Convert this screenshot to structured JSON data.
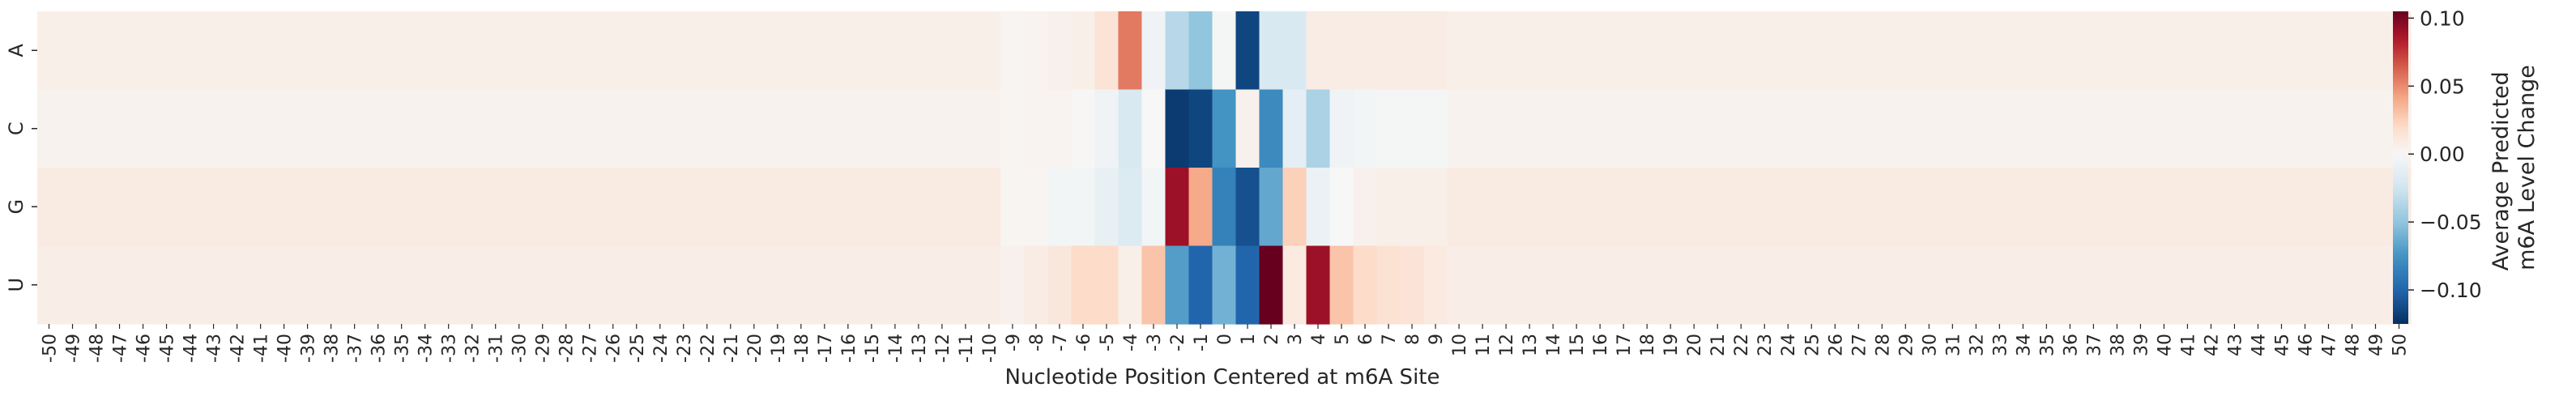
{
  "chart_data": {
    "type": "heatmap",
    "title": "",
    "xlabel": "Nucleotide Position Centered at m6A Site",
    "ylabel": "",
    "rows": [
      "A",
      "C",
      "G",
      "U"
    ],
    "x": [
      -50,
      -49,
      -48,
      -47,
      -46,
      -45,
      -44,
      -43,
      -42,
      -41,
      -40,
      -39,
      -38,
      -37,
      -36,
      -35,
      -34,
      -33,
      -32,
      -31,
      -30,
      -29,
      -28,
      -27,
      -26,
      -25,
      -24,
      -23,
      -22,
      -21,
      -20,
      -19,
      -18,
      -17,
      -16,
      -15,
      -14,
      -13,
      -12,
      -11,
      -10,
      -9,
      -8,
      -7,
      -6,
      -5,
      -4,
      -3,
      -2,
      -1,
      0,
      1,
      2,
      3,
      4,
      5,
      6,
      7,
      8,
      9,
      10,
      11,
      12,
      13,
      14,
      15,
      16,
      17,
      18,
      19,
      20,
      21,
      22,
      23,
      24,
      25,
      26,
      27,
      28,
      29,
      30,
      31,
      32,
      33,
      34,
      35,
      36,
      37,
      38,
      39,
      40,
      41,
      42,
      43,
      44,
      45,
      46,
      47,
      48,
      49,
      50
    ],
    "core": {
      "positions": [
        -9,
        -8,
        -7,
        -6,
        -5,
        -4,
        -3,
        -2,
        -1,
        0,
        1,
        2,
        3,
        4,
        5,
        6,
        7,
        8,
        9
      ],
      "A": [
        0.002,
        0.003,
        0.005,
        0.006,
        0.015,
        0.055,
        -0.005,
        -0.035,
        -0.05,
        -0.002,
        -0.115,
        -0.02,
        -0.02,
        0.008,
        0.008,
        0.008,
        0.008,
        0.008,
        0.008
      ],
      "C": [
        0.002,
        0.003,
        0.003,
        0.001,
        -0.005,
        -0.02,
        0.0,
        -0.12,
        -0.115,
        -0.075,
        0.005,
        -0.08,
        -0.012,
        -0.04,
        -0.005,
        -0.003,
        -0.002,
        -0.002,
        -0.002
      ],
      "G": [
        0.002,
        0.002,
        -0.003,
        -0.003,
        -0.01,
        -0.018,
        -0.003,
        0.09,
        0.04,
        -0.085,
        -0.11,
        -0.065,
        0.025,
        -0.008,
        0.0,
        0.005,
        0.006,
        0.006,
        0.006
      ],
      "U": [
        0.005,
        0.008,
        0.012,
        0.02,
        0.02,
        0.006,
        0.03,
        -0.07,
        -0.1,
        -0.06,
        -0.1,
        0.14,
        0.01,
        0.09,
        0.03,
        0.02,
        0.016,
        0.014,
        0.01
      ]
    },
    "background": {
      "A": 0.006,
      "C": 0.004,
      "G": 0.009,
      "U": 0.007
    },
    "colorbar": {
      "label": [
        "Average Predicted",
        "m6A Level Change"
      ],
      "ticks": [
        0.1,
        0.05,
        0.0,
        -0.05,
        -0.1
      ],
      "tick_labels": [
        "0.10",
        "0.05",
        "0.00",
        "−0.05",
        "−0.10"
      ],
      "vmin": -0.125,
      "vmax": 0.105,
      "colormap": "RdBu_r"
    },
    "grid": false
  }
}
